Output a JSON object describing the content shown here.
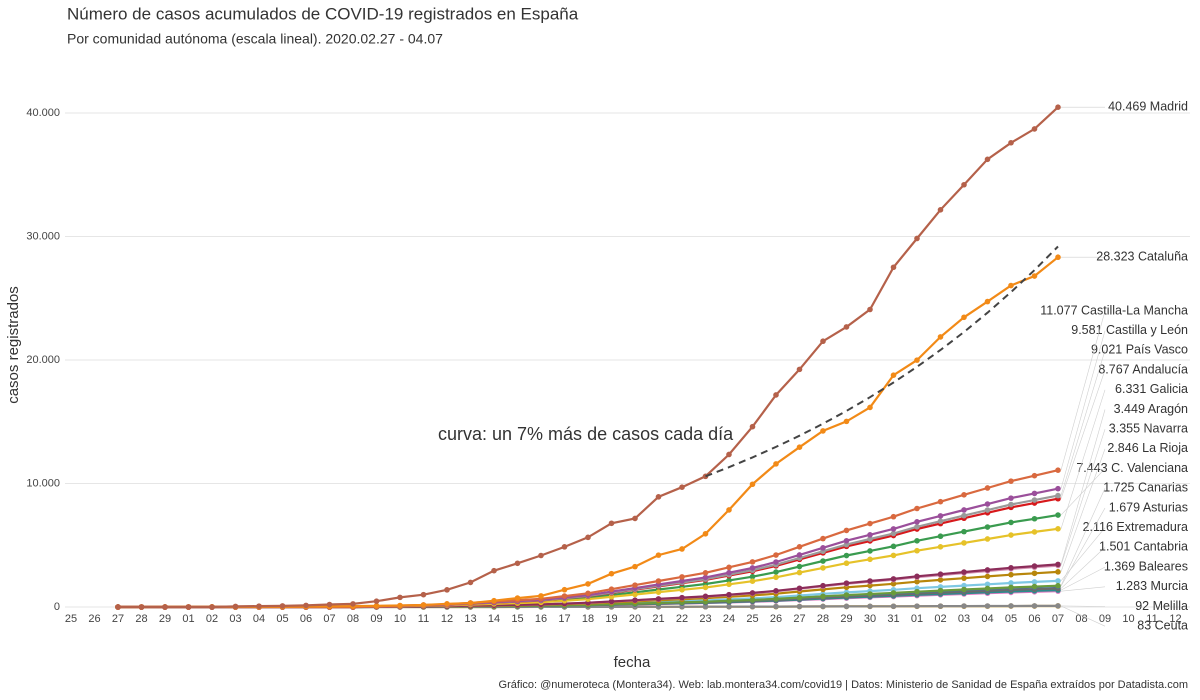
{
  "chart_data": {
    "type": "line",
    "title": "Número de casos acumulados de COVID-19 registrados en España",
    "subtitle": "Por comunidad autónoma (escala lineal). 2020.02.27 - 04.07",
    "x_label": "fecha",
    "y_label": "casos registrados",
    "caption": "Gráfico: @numeroteca (Montera34). Web: lab.montera34.com/covid19 | Datos: Ministerio de Sanidad de España extraídos por Datadista.com",
    "annotation": "curva: un 7% más de casos cada día",
    "categories": [
      "25",
      "26",
      "27",
      "28",
      "29",
      "01",
      "02",
      "03",
      "04",
      "05",
      "06",
      "07",
      "08",
      "09",
      "10",
      "11",
      "12",
      "13",
      "14",
      "15",
      "16",
      "17",
      "18",
      "19",
      "20",
      "21",
      "22",
      "23",
      "24",
      "25",
      "26",
      "27",
      "28",
      "29",
      "30",
      "31",
      "01",
      "02",
      "03",
      "04",
      "05",
      "06",
      "07",
      "08",
      "09",
      "10",
      "11",
      "12"
    ],
    "ylim": [
      -1862,
      41862
    ],
    "yticks": [
      0,
      {
        "value": 10000,
        "label": "10.000"
      },
      {
        "value": 20000,
        "label": "20.000"
      },
      {
        "value": 30000,
        "label": "30.000"
      },
      {
        "value": 40000,
        "label": "40.000"
      }
    ],
    "grid": true,
    "curve": {
      "color": "#444444",
      "dashed": true,
      "values": [
        null,
        null,
        null,
        null,
        null,
        null,
        null,
        null,
        null,
        null,
        null,
        null,
        null,
        null,
        null,
        null,
        null,
        null,
        null,
        null,
        null,
        null,
        null,
        null,
        null,
        null,
        null,
        10580,
        11321,
        12113,
        12961,
        13868,
        14839,
        15878,
        16989,
        18179,
        19451,
        20813,
        22270,
        23828,
        25496,
        27281,
        29191,
        null,
        null,
        null,
        null,
        null
      ]
    },
    "series": [
      {
        "name": "40.469 Madrid",
        "color": "#b5614a",
        "values": [
          null,
          null,
          0,
          0,
          0,
          0,
          0,
          50,
          70,
          90,
          130,
          200,
          250,
          470,
          780,
          1000,
          1390,
          1990,
          2940,
          3540,
          4170,
          4870,
          5640,
          6780,
          7170,
          8920,
          9700,
          10580,
          12350,
          14600,
          17170,
          19240,
          21520,
          22680,
          24090,
          27510,
          29840,
          32160,
          34190,
          36250,
          37590,
          38710,
          40469,
          null,
          null,
          null,
          null,
          null
        ]
      },
      {
        "name": "28.323 Cataluña",
        "color": "#f28a17",
        "values": [
          null,
          null,
          1,
          2,
          6,
          6,
          15,
          15,
          15,
          20,
          40,
          50,
          70,
          100,
          120,
          160,
          260,
          320,
          510,
          720,
          900,
          1400,
          1870,
          2700,
          3270,
          4200,
          4700,
          5930,
          7860,
          9940,
          11590,
          12940,
          14260,
          15030,
          16160,
          18770,
          19990,
          21870,
          23460,
          24730,
          26030,
          26800,
          28323,
          null,
          null,
          null,
          null,
          null
        ]
      },
      {
        "name": "11.077 Castilla-La Mancha",
        "color": "#d9693f",
        "values": [
          null,
          null,
          0,
          0,
          0,
          0,
          0,
          0,
          0,
          0,
          0,
          0,
          0,
          55,
          111,
          166,
          222,
          332,
          443,
          554,
          665,
          886,
          1108,
          1440,
          1772,
          2105,
          2437,
          2769,
          3212,
          3655,
          4209,
          4874,
          5539,
          6203,
          6757,
          7311,
          7975,
          8529,
          9083,
          9637,
          10191,
          10634,
          11077,
          null,
          null,
          null,
          null,
          null
        ]
      },
      {
        "name": "9.581 Castilla y León",
        "color": "#9b4f9b",
        "values": [
          null,
          null,
          0,
          0,
          0,
          0,
          0,
          0,
          0,
          0,
          0,
          0,
          0,
          48,
          96,
          144,
          192,
          287,
          383,
          479,
          575,
          766,
          958,
          1246,
          1533,
          1820,
          2108,
          2395,
          2778,
          3162,
          3641,
          4216,
          4791,
          5365,
          5844,
          6323,
          6898,
          7377,
          7856,
          8335,
          8815,
          9198,
          9581,
          null,
          null,
          null,
          null,
          null
        ]
      },
      {
        "name": "9.021 País Vasco",
        "color": "#9a9a9a",
        "values": [
          null,
          null,
          0,
          0,
          0,
          0,
          0,
          0,
          0,
          0,
          0,
          0,
          0,
          45,
          90,
          135,
          180,
          271,
          361,
          451,
          541,
          722,
          902,
          1173,
          1443,
          1714,
          1985,
          2255,
          2616,
          2977,
          3428,
          3969,
          4511,
          5052,
          5503,
          5954,
          6495,
          6946,
          7397,
          7848,
          8299,
          8660,
          9021,
          null,
          null,
          null,
          null,
          null
        ]
      },
      {
        "name": "8.767 Andalucía",
        "color": "#d7191c",
        "values": [
          null,
          null,
          0,
          0,
          0,
          0,
          0,
          0,
          0,
          0,
          0,
          0,
          0,
          44,
          88,
          132,
          175,
          263,
          351,
          438,
          526,
          701,
          877,
          1140,
          1403,
          1666,
          1929,
          2192,
          2542,
          2893,
          3331,
          3857,
          4384,
          4910,
          5348,
          5786,
          6312,
          6751,
          7189,
          7627,
          8066,
          8416,
          8767,
          null,
          null,
          null,
          null,
          null
        ]
      },
      {
        "name": "6.331 Galicia",
        "color": "#e6c229",
        "values": [
          null,
          null,
          0,
          0,
          0,
          0,
          0,
          0,
          0,
          0,
          0,
          0,
          0,
          32,
          63,
          95,
          127,
          190,
          253,
          317,
          380,
          506,
          633,
          823,
          1013,
          1203,
          1393,
          1583,
          1836,
          2089,
          2406,
          2786,
          3166,
          3545,
          3862,
          4178,
          4558,
          4875,
          5191,
          5508,
          5825,
          6078,
          6331,
          null,
          null,
          null,
          null,
          null
        ]
      },
      {
        "name": "3.449 Aragón",
        "color": "#8c2d5a",
        "values": [
          null,
          null,
          0,
          0,
          0,
          0,
          0,
          0,
          0,
          0,
          0,
          0,
          0,
          17,
          34,
          52,
          69,
          103,
          138,
          172,
          207,
          276,
          345,
          448,
          552,
          655,
          759,
          862,
          1000,
          1138,
          1311,
          1518,
          1725,
          1931,
          2104,
          2276,
          2483,
          2656,
          2828,
          3001,
          3173,
          3311,
          3449,
          null,
          null,
          null,
          null,
          null
        ]
      },
      {
        "name": "3.355 Navarra",
        "color": "#d48fb0",
        "values": [
          null,
          null,
          0,
          0,
          0,
          0,
          0,
          0,
          0,
          0,
          0,
          0,
          0,
          17,
          34,
          50,
          67,
          101,
          134,
          168,
          201,
          268,
          336,
          436,
          537,
          637,
          738,
          839,
          973,
          1107,
          1275,
          1476,
          1678,
          1879,
          2047,
          2214,
          2416,
          2583,
          2751,
          2919,
          3087,
          3221,
          3355,
          null,
          null,
          null,
          null,
          null
        ]
      },
      {
        "name": "2.846 La Rioja",
        "color": "#b8860b",
        "values": [
          null,
          null,
          0,
          0,
          0,
          0,
          0,
          0,
          0,
          0,
          0,
          0,
          0,
          14,
          28,
          43,
          57,
          85,
          114,
          142,
          171,
          228,
          285,
          370,
          455,
          541,
          626,
          712,
          825,
          939,
          1081,
          1252,
          1423,
          1594,
          1736,
          1878,
          2049,
          2191,
          2334,
          2476,
          2618,
          2732,
          2846,
          null,
          null,
          null,
          null,
          null
        ]
      },
      {
        "name": "7.443 C. Valenciana",
        "color": "#3a9b4f",
        "values": [
          null,
          null,
          0,
          0,
          0,
          0,
          0,
          0,
          0,
          0,
          0,
          0,
          0,
          37,
          74,
          112,
          149,
          223,
          298,
          372,
          447,
          595,
          744,
          968,
          1191,
          1414,
          1637,
          1861,
          2158,
          2456,
          2828,
          3275,
          3722,
          4168,
          4540,
          4912,
          5359,
          5731,
          6103,
          6475,
          6848,
          7145,
          7443,
          null,
          null,
          null,
          null,
          null
        ]
      },
      {
        "name": "1.725 Canarias",
        "color": "#6a9a3c",
        "values": [
          null,
          null,
          0,
          0,
          0,
          0,
          0,
          0,
          0,
          0,
          0,
          0,
          0,
          9,
          17,
          26,
          35,
          52,
          69,
          86,
          104,
          138,
          173,
          224,
          276,
          328,
          380,
          431,
          500,
          569,
          656,
          759,
          863,
          966,
          1052,
          1139,
          1242,
          1328,
          1415,
          1501,
          1587,
          1656,
          1725,
          null,
          null,
          null,
          null,
          null
        ]
      },
      {
        "name": "1.679 Asturias",
        "color": "#4a6fa5",
        "values": [
          null,
          null,
          0,
          0,
          0,
          0,
          0,
          0,
          0,
          0,
          0,
          0,
          0,
          8,
          17,
          25,
          34,
          50,
          67,
          84,
          101,
          134,
          168,
          218,
          269,
          319,
          369,
          420,
          487,
          554,
          638,
          739,
          840,
          940,
          1024,
          1108,
          1209,
          1293,
          1377,
          1461,
          1545,
          1612,
          1679,
          null,
          null,
          null,
          null,
          null
        ]
      },
      {
        "name": "2.116 Extremadura",
        "color": "#7ec8e3",
        "values": [
          null,
          null,
          0,
          0,
          0,
          0,
          0,
          0,
          0,
          0,
          0,
          0,
          0,
          11,
          21,
          32,
          42,
          63,
          85,
          106,
          127,
          169,
          212,
          275,
          339,
          402,
          466,
          529,
          614,
          698,
          804,
          931,
          1058,
          1185,
          1291,
          1397,
          1524,
          1629,
          1735,
          1841,
          1947,
          2031,
          2116,
          null,
          null,
          null,
          null,
          null
        ]
      },
      {
        "name": "1.501 Cantabria",
        "color": "#6b6b6b",
        "values": [
          null,
          null,
          0,
          0,
          0,
          0,
          0,
          0,
          0,
          0,
          0,
          0,
          0,
          8,
          15,
          23,
          30,
          45,
          60,
          75,
          90,
          120,
          150,
          195,
          240,
          285,
          330,
          375,
          435,
          495,
          570,
          660,
          751,
          841,
          916,
          991,
          1081,
          1156,
          1231,
          1306,
          1381,
          1441,
          1501,
          null,
          null,
          null,
          null,
          null
        ]
      },
      {
        "name": "1.369 Baleares",
        "color": "#2a8c8c",
        "values": [
          null,
          null,
          0,
          0,
          0,
          0,
          0,
          0,
          0,
          0,
          0,
          0,
          0,
          7,
          14,
          21,
          27,
          41,
          55,
          68,
          82,
          110,
          137,
          178,
          219,
          260,
          301,
          342,
          397,
          452,
          520,
          602,
          685,
          767,
          835,
          904,
          986,
          1054,
          1123,
          1191,
          1259,
          1314,
          1369,
          null,
          null,
          null,
          null,
          null
        ]
      },
      {
        "name": "1.283 Murcia",
        "color": "#e377c2",
        "values": [
          null,
          null,
          0,
          0,
          0,
          0,
          0,
          0,
          0,
          0,
          0,
          0,
          0,
          6,
          13,
          19,
          26,
          38,
          51,
          64,
          77,
          103,
          128,
          167,
          205,
          244,
          282,
          321,
          372,
          423,
          488,
          565,
          642,
          718,
          783,
          847,
          924,
          988,
          1052,
          1116,
          1180,
          1232,
          1283,
          null,
          null,
          null,
          null,
          null
        ]
      },
      {
        "name": "92 Melilla",
        "color": "#888888",
        "values": [
          null,
          null,
          0,
          0,
          0,
          0,
          0,
          0,
          0,
          0,
          0,
          0,
          0,
          0,
          1,
          1,
          2,
          3,
          4,
          5,
          6,
          7,
          9,
          12,
          15,
          17,
          20,
          23,
          27,
          30,
          35,
          40,
          46,
          52,
          56,
          61,
          66,
          71,
          75,
          80,
          85,
          88,
          92,
          null,
          null,
          null,
          null,
          null
        ]
      },
      {
        "name": "83 Ceuta",
        "color": "#e69f00",
        "values": [
          null,
          null,
          0,
          0,
          0,
          0,
          0,
          0,
          0,
          0,
          0,
          0,
          0,
          0,
          1,
          1,
          2,
          2,
          3,
          4,
          5,
          7,
          8,
          11,
          13,
          16,
          18,
          21,
          24,
          27,
          32,
          37,
          42,
          46,
          51,
          55,
          60,
          64,
          68,
          72,
          76,
          80,
          83,
          null,
          null,
          null,
          null,
          null
        ]
      }
    ]
  }
}
